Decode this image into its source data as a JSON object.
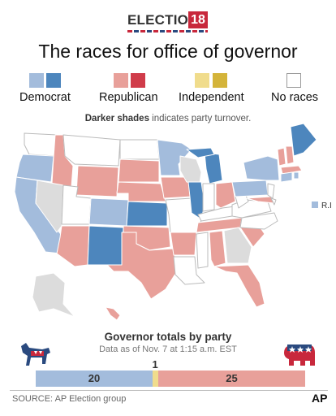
{
  "logo": {
    "word": "ELECTION",
    "year": "18"
  },
  "title": "The races for office of governor",
  "legend": {
    "democrat": {
      "label": "Democrat",
      "light": "#a3bcdc",
      "dark": "#4d86bd"
    },
    "republican": {
      "label": "Republican",
      "light": "#e8a09a",
      "dark": "#d03c4a"
    },
    "independent": {
      "label": "Independent",
      "light": "#f0dc8c",
      "dark": "#d4b43a"
    },
    "no_races": {
      "label": "No races",
      "color": "#ffffff"
    }
  },
  "note": {
    "bold": "Darker shades",
    "rest": " indicates party turnover."
  },
  "map": {
    "ri_label": "R.I.",
    "no_race_fill": "#dcdcdc",
    "no_election_fill": "#ffffff"
  },
  "totals": {
    "title": "Governor totals by party",
    "subtitle": "Data as of Nov. 7 at 1:15 a.m. EST",
    "democrat": 20,
    "independent": 1,
    "republican": 25
  },
  "source": "SOURCE: AP Election group",
  "ap_logo": "AP"
}
